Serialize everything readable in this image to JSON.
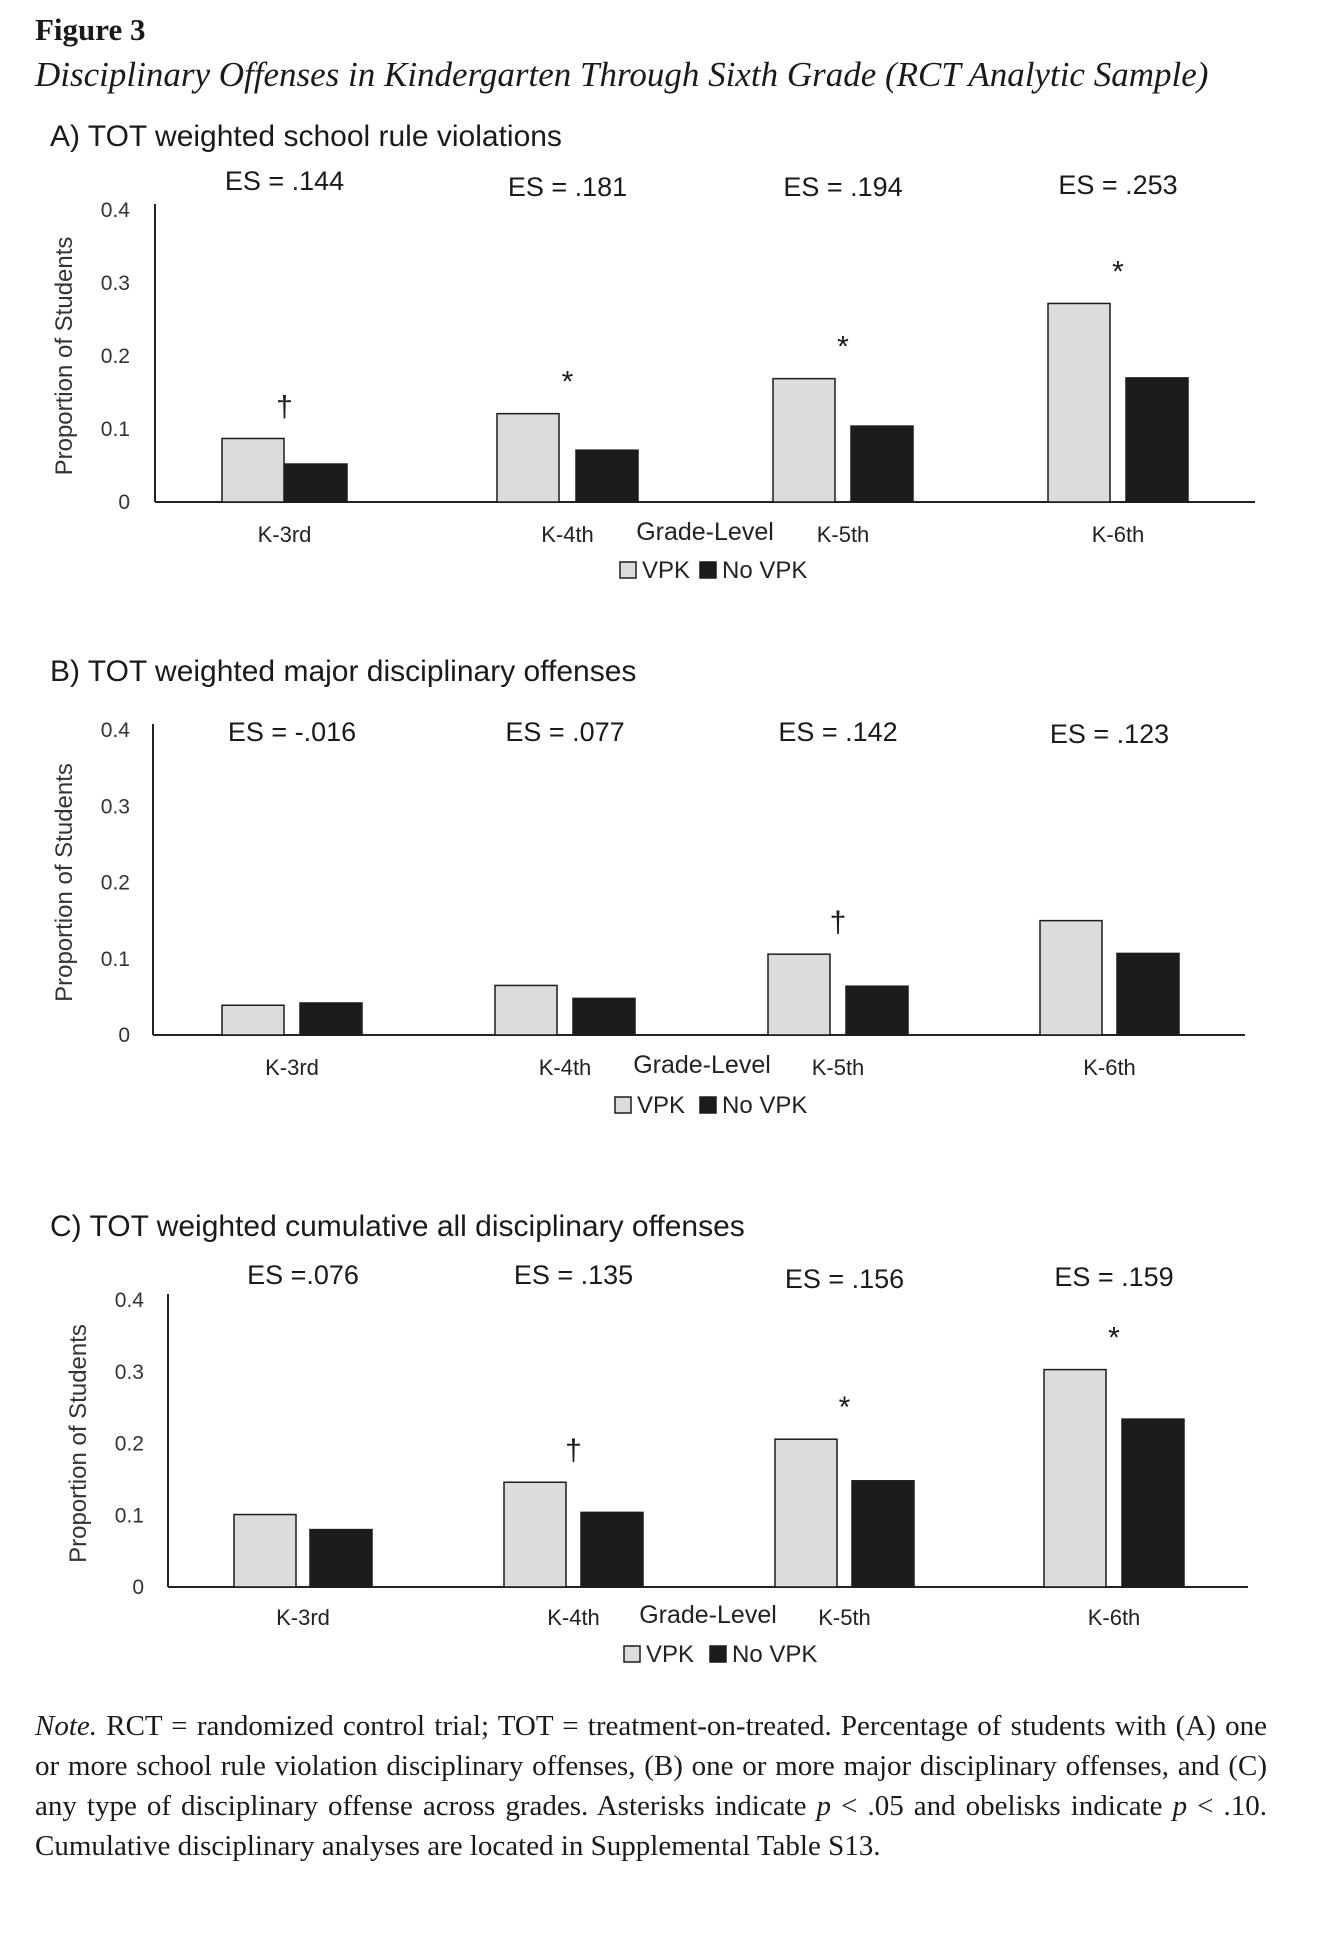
{
  "figure": {
    "label": "Figure 3",
    "title": "Disciplinary Offenses in Kindergarten Through Sixth Grade (RCT Analytic Sample)"
  },
  "colors": {
    "vpk": "#dcdcdc",
    "no_vpk": "#1c1c1c",
    "axis": "#222222"
  },
  "chart_data": [
    {
      "type": "bar",
      "title": "A) TOT weighted school rule violations",
      "xlabel": "Grade-Level",
      "ylabel": "Proportion of Students",
      "ylim": [
        0,
        0.4
      ],
      "yticks": [
        "0",
        "0.1",
        "0.2",
        "0.3",
        "0.4"
      ],
      "categories": [
        "K-3rd",
        "K-4th",
        "K-5th",
        "K-6th"
      ],
      "series": [
        {
          "name": "VPK",
          "values": [
            0.087,
            0.121,
            0.169,
            0.272
          ]
        },
        {
          "name": "No VPK",
          "values": [
            0.052,
            0.071,
            0.104,
            0.17
          ]
        }
      ],
      "effect_sizes": [
        "ES = .144",
        "ES = .181",
        "ES = .194",
        "ES = .253"
      ],
      "significance": [
        "†",
        "*",
        "*",
        "*"
      ],
      "legend": "bottom-center"
    },
    {
      "type": "bar",
      "title": "B) TOT weighted major disciplinary offenses",
      "xlabel": "Grade-Level",
      "ylabel": "Proportion of Students",
      "ylim": [
        0,
        0.4
      ],
      "yticks": [
        "0",
        "0.1",
        "0.2",
        "0.3",
        "0.4"
      ],
      "categories": [
        "K-3rd",
        "K-4th",
        "K-5th",
        "K-6th"
      ],
      "series": [
        {
          "name": "VPK",
          "values": [
            0.039,
            0.065,
            0.106,
            0.15
          ]
        },
        {
          "name": "No VPK",
          "values": [
            0.042,
            0.048,
            0.064,
            0.107
          ]
        }
      ],
      "effect_sizes": [
        "ES = -.016",
        "ES = .077",
        "ES = .142",
        "ES = .123"
      ],
      "significance": [
        "",
        "",
        "†",
        ""
      ],
      "legend": "bottom-center"
    },
    {
      "type": "bar",
      "title": "C) TOT weighted cumulative all disciplinary offenses",
      "xlabel": "Grade-Level",
      "ylabel": "Proportion of Students",
      "ylim": [
        0,
        0.4
      ],
      "yticks": [
        "0",
        "0.1",
        "0.2",
        "0.3",
        "0.4"
      ],
      "categories": [
        "K-3rd",
        "K-4th",
        "K-5th",
        "K-6th"
      ],
      "series": [
        {
          "name": "VPK",
          "values": [
            0.101,
            0.146,
            0.206,
            0.303
          ]
        },
        {
          "name": "No VPK",
          "values": [
            0.08,
            0.104,
            0.148,
            0.234
          ]
        }
      ],
      "effect_sizes": [
        "ES =.076",
        "ES = .135",
        "ES = .156",
        "ES = .159"
      ],
      "significance": [
        "",
        "†",
        "*",
        "*"
      ],
      "legend": "bottom-center"
    }
  ],
  "note": {
    "label": "Note.",
    "part1": " RCT = randomized control trial; TOT = treatment-on-treated. Percentage of students with (A) one or more school rule violation disciplinary offenses, (B) one or more major disciplinary offenses, and (C) any type of disciplinary offense across grades. Asterisks indicate ",
    "p1": "p",
    "part2": " < .05 and obelisks indicate ",
    "p2": "p",
    "part3": " < .10. Cumulative disciplinary analyses are located in Supplemental Table S13."
  }
}
